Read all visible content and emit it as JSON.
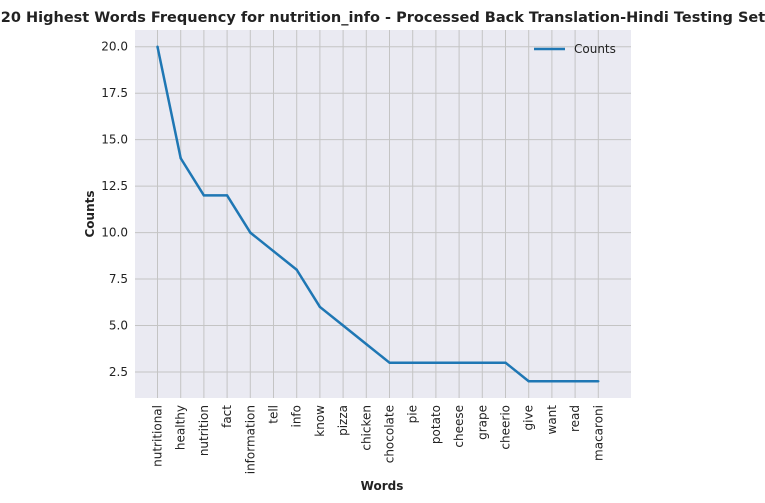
{
  "chart_data": {
    "type": "line",
    "title": "20 Highest Words Frequency for nutrition_info - Processed Back Translation-Hindi Testing Set",
    "xlabel": "Words",
    "ylabel": "Counts",
    "categories": [
      "nutritional",
      "healthy",
      "nutrition",
      "fact",
      "information",
      "tell",
      "info",
      "know",
      "pizza",
      "chicken",
      "chocolate",
      "pie",
      "potato",
      "cheese",
      "grape",
      "cheerio",
      "give",
      "want",
      "read",
      "macaroni"
    ],
    "series": [
      {
        "name": "Counts",
        "values": [
          20,
          14,
          12,
          12,
          10,
          9,
          8,
          6,
          5,
          4,
          3,
          3,
          3,
          3,
          3,
          3,
          2,
          2,
          2,
          2
        ]
      }
    ],
    "ylim": [
      1.1,
      20.9
    ],
    "yticks": [
      "2.5",
      "5.0",
      "7.5",
      "10.0",
      "12.5",
      "15.0",
      "17.5",
      "20.0"
    ],
    "grid": true,
    "legend_position": "top-right",
    "line_color": "#1f77b4"
  }
}
